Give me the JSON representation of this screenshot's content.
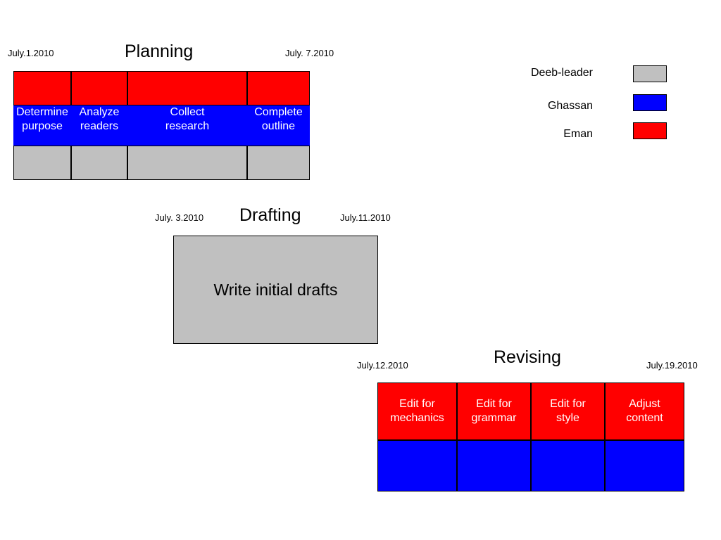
{
  "colors": {
    "gray": "#c0c0c0",
    "blue": "#0000ff",
    "red": "#ff0000"
  },
  "legend": [
    {
      "label": "Deeb-leader",
      "color": "#c0c0c0"
    },
    {
      "label": "Ghassan",
      "color": "#0000ff"
    },
    {
      "label": "Eman",
      "color": "#ff0000"
    }
  ],
  "planning": {
    "title": "Planning",
    "start": "July.1.2010",
    "end": "July. 7.2010",
    "tasks": [
      "Determine\npurpose",
      "Analyze\nreaders",
      "Collect\nresearch",
      "Complete\noutline"
    ]
  },
  "drafting": {
    "title": "Drafting",
    "start": "July. 3.2010",
    "end": "July.11.2010",
    "task": "Write initial drafts"
  },
  "revising": {
    "title": "Revising",
    "start": "July.12.2010",
    "end": "July.19.2010",
    "tasks": [
      "Edit for\nmechanics",
      "Edit for\ngrammar",
      "Edit for\nstyle",
      "Adjust\ncontent"
    ]
  }
}
